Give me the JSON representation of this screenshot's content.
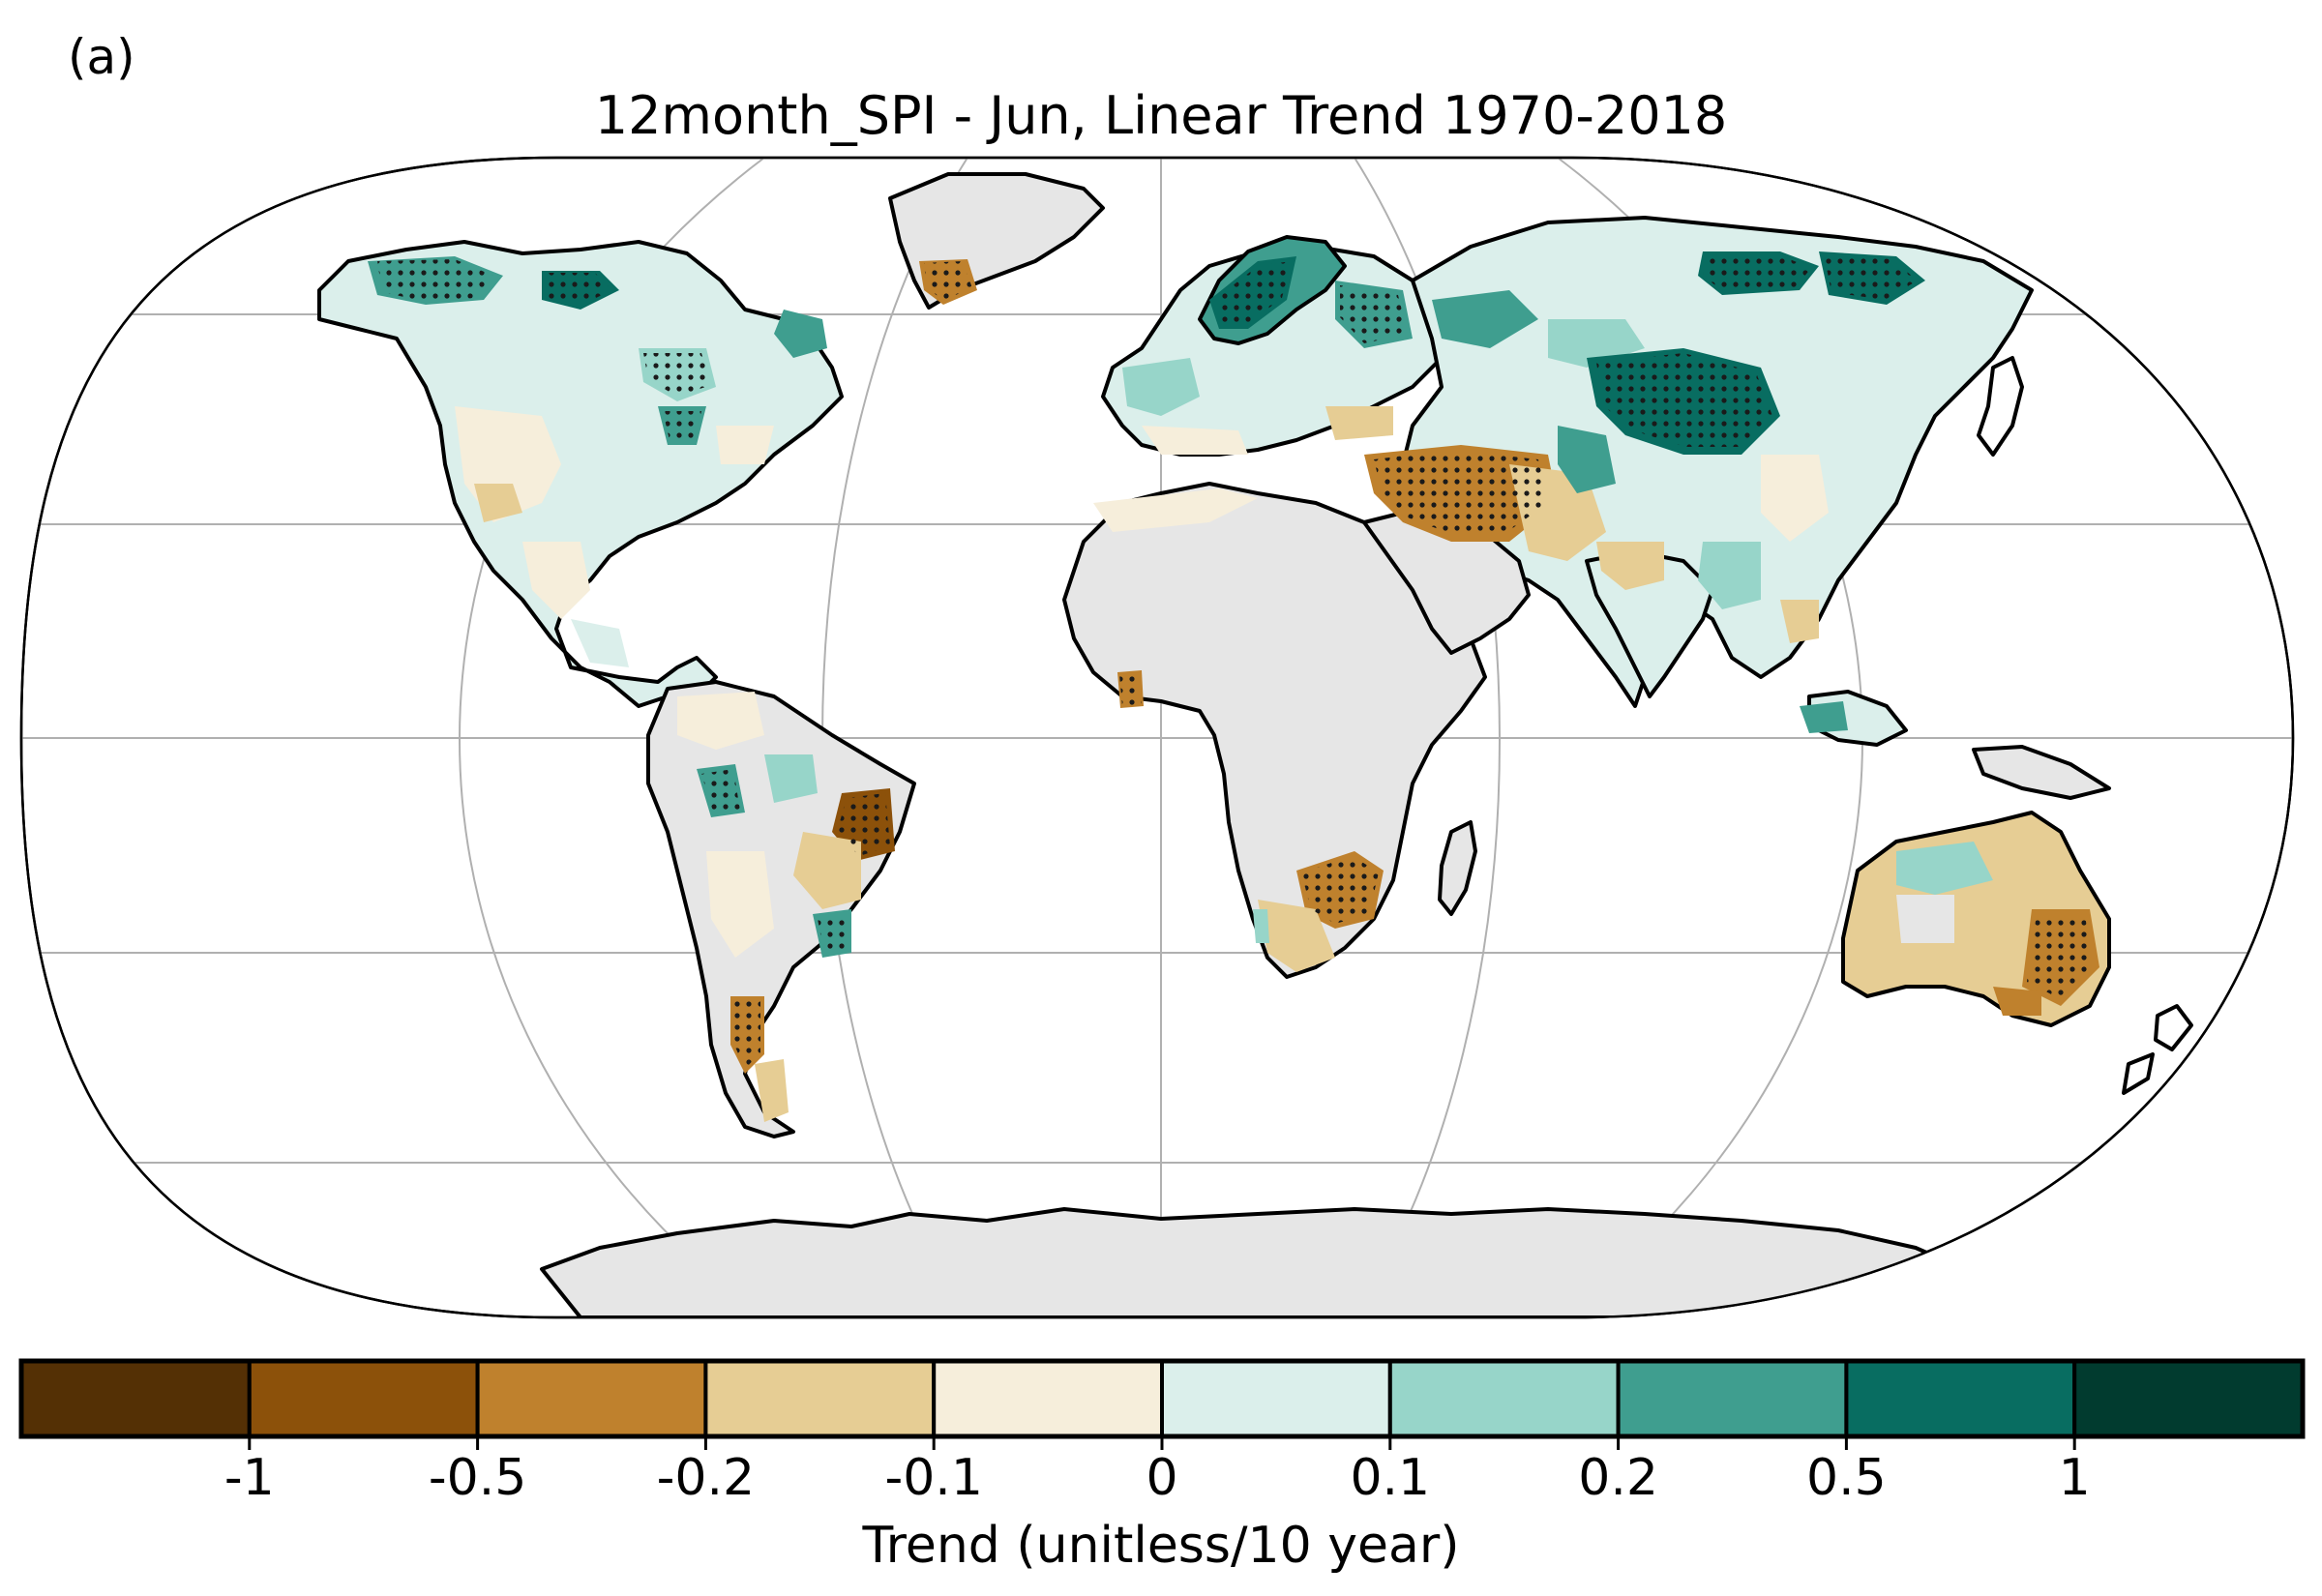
{
  "panel_label": "(a)",
  "title": "12month_SPI - Jun, Linear Trend 1970-2018",
  "projection": "Robinson",
  "colorbar": {
    "label": "Trend (unitless/10 year)",
    "tick_labels": [
      "-1",
      "-0.5",
      "-0.2",
      "-0.1",
      "0",
      "0.1",
      "0.2",
      "0.5",
      "1"
    ],
    "bins": [
      {
        "range": "< -1",
        "color": "#543005"
      },
      {
        "range": "-1 to -0.5",
        "color": "#8c510a"
      },
      {
        "range": "-0.5 to -0.2",
        "color": "#bf812d"
      },
      {
        "range": "-0.2 to -0.1",
        "color": "#e6cd94"
      },
      {
        "range": "-0.1 to 0",
        "color": "#f6eedb"
      },
      {
        "range": "0 to 0.1",
        "color": "#dbefeb"
      },
      {
        "range": "0.1 to 0.2",
        "color": "#97d5c9"
      },
      {
        "range": "0.2 to 0.5",
        "color": "#3f9e8f"
      },
      {
        "range": "0.5 to 1",
        "color": "#086d61"
      },
      {
        "range": "> 1",
        "color": "#013b2f"
      }
    ]
  },
  "colors": {
    "no_data_land": "#e6e6e6",
    "ocean": "#ffffff",
    "gridline": "#b0b0b0",
    "coastline": "#000000"
  },
  "significance": "stippled dots mark statistically significant trends"
}
